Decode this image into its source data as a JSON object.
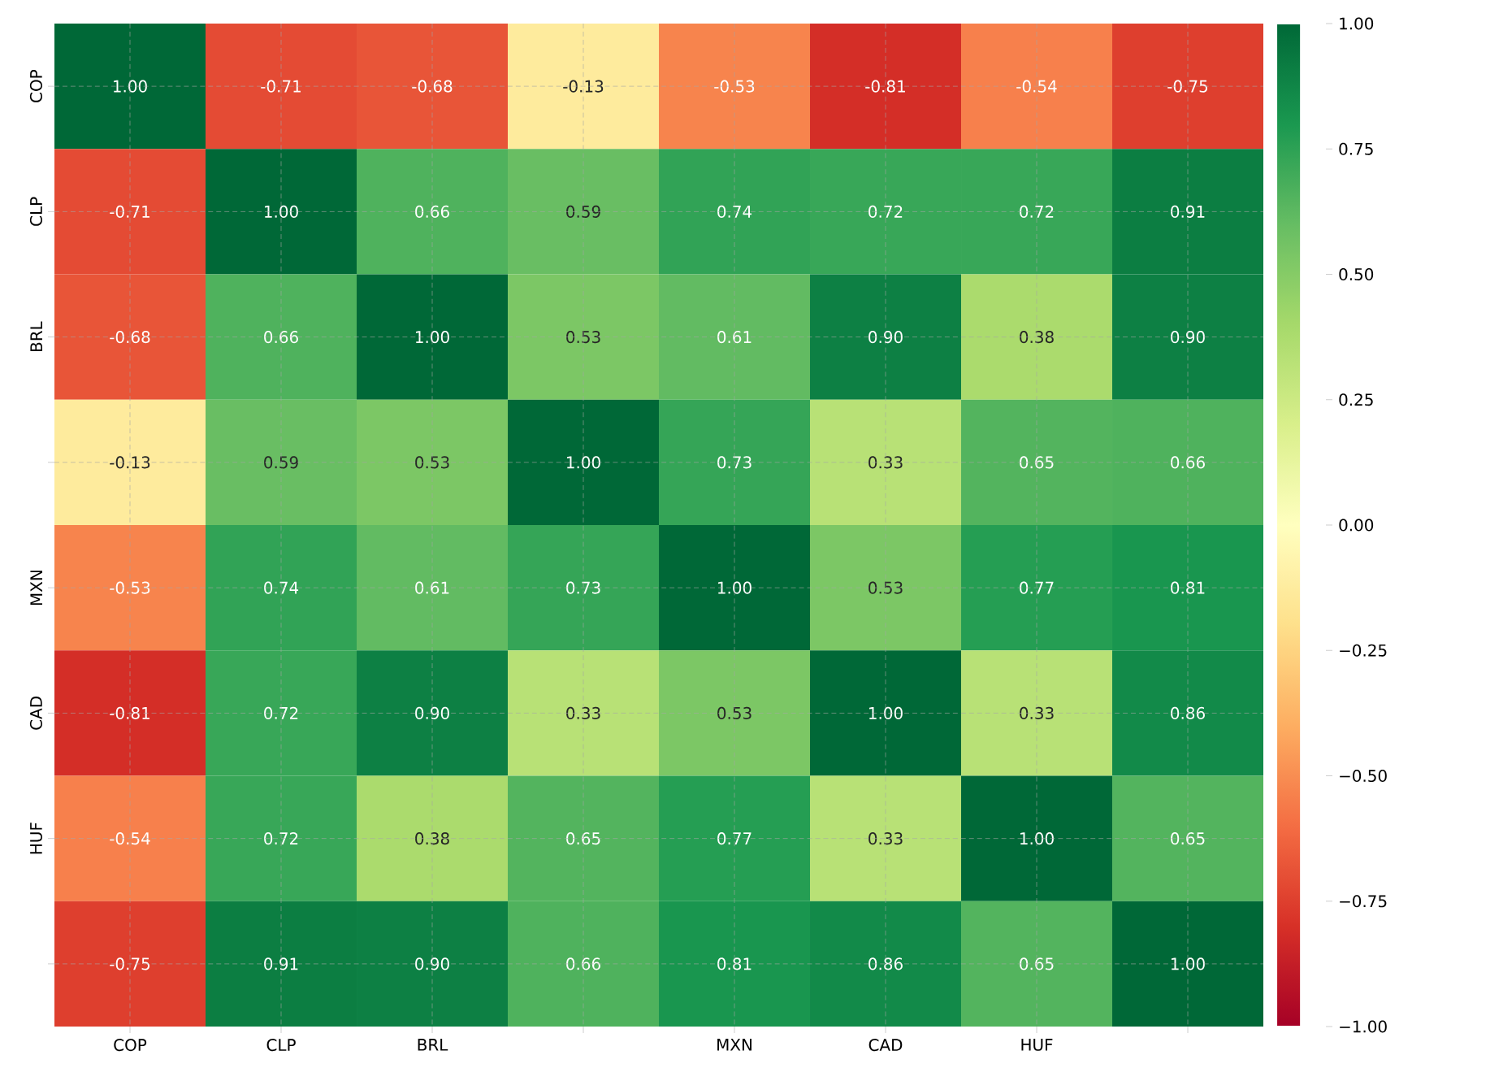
{
  "chart_data": {
    "type": "heatmap",
    "categories": [
      "COP",
      "CLP",
      "BRL",
      null,
      "MXN",
      "CAD",
      "HUF",
      null
    ],
    "y_categories": [
      "COP",
      "CLP",
      "BRL",
      null,
      "MXN",
      "CAD",
      "HUF",
      null
    ],
    "cells": [
      [
        1.0,
        -0.71,
        -0.68,
        -0.13,
        -0.53,
        -0.81,
        -0.54,
        -0.75
      ],
      [
        -0.71,
        1.0,
        0.66,
        0.59,
        0.74,
        0.72,
        0.72,
        0.91
      ],
      [
        -0.68,
        0.66,
        1.0,
        0.53,
        0.61,
        0.9,
        0.38,
        0.9
      ],
      [
        -0.13,
        0.59,
        0.53,
        1.0,
        0.73,
        0.33,
        0.65,
        0.66
      ],
      [
        -0.53,
        0.74,
        0.61,
        0.73,
        1.0,
        0.53,
        0.77,
        0.81
      ],
      [
        -0.81,
        0.72,
        0.9,
        0.33,
        0.53,
        1.0,
        0.33,
        0.86
      ],
      [
        -0.54,
        0.72,
        0.38,
        0.65,
        0.77,
        0.33,
        1.0,
        0.65
      ],
      [
        -0.75,
        0.91,
        0.9,
        0.66,
        0.81,
        0.86,
        0.65,
        1.0
      ]
    ],
    "cell_labels": [
      [
        "1.00",
        "-0.71",
        "-0.68",
        "-0.13",
        "-0.53",
        "-0.81",
        "-0.54",
        "-0.75"
      ],
      [
        "-0.71",
        "1.00",
        "0.66",
        "0.59",
        "0.74",
        "0.72",
        "0.72",
        "0.91"
      ],
      [
        "-0.68",
        "0.66",
        "1.00",
        "0.53",
        "0.61",
        "0.90",
        "0.38",
        "0.90"
      ],
      [
        "-0.13",
        "0.59",
        "0.53",
        "1.00",
        "0.73",
        "0.33",
        "0.65",
        "0.66"
      ],
      [
        "-0.53",
        "0.74",
        "0.61",
        "0.73",
        "1.00",
        "0.53",
        "0.77",
        "0.81"
      ],
      [
        "-0.81",
        "0.72",
        "0.90",
        "0.33",
        "0.53",
        "1.00",
        "0.33",
        "0.86"
      ],
      [
        "-0.54",
        "0.72",
        "0.38",
        "0.65",
        "0.77",
        "0.33",
        "1.00",
        "0.65"
      ],
      [
        "-0.75",
        "0.91",
        "0.90",
        "0.66",
        "0.81",
        "0.86",
        "0.65",
        "1.00"
      ]
    ],
    "clim": [
      -1,
      1
    ],
    "cticks": [
      {
        "value": -1,
        "label": "−1.00"
      },
      {
        "value": -0.75,
        "label": "−0.75"
      },
      {
        "value": -0.5,
        "label": "−0.50"
      },
      {
        "value": -0.25,
        "label": "−0.25"
      },
      {
        "value": 0,
        "label": "0.00"
      },
      {
        "value": 0.25,
        "label": "0.25"
      },
      {
        "value": 0.5,
        "label": "0.50"
      },
      {
        "value": 0.75,
        "label": "0.75"
      },
      {
        "value": 1,
        "label": "1.00"
      }
    ],
    "grid": true
  }
}
